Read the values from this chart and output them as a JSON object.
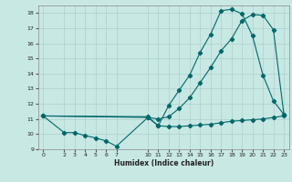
{
  "xlabel": "Humidex (Indice chaleur)",
  "bg_color": "#c8e8e4",
  "grid_color": "#aed0cc",
  "line_color": "#006868",
  "xlim": [
    -0.5,
    23.5
  ],
  "ylim": [
    9,
    18.5
  ],
  "xticks": [
    0,
    2,
    3,
    4,
    5,
    6,
    7,
    10,
    11,
    12,
    13,
    14,
    15,
    16,
    17,
    18,
    19,
    20,
    21,
    22,
    23
  ],
  "yticks": [
    9,
    10,
    11,
    12,
    13,
    14,
    15,
    16,
    17,
    18
  ],
  "line1_x": [
    0,
    2,
    3,
    4,
    5,
    6,
    7,
    10,
    11,
    12,
    13,
    14,
    15,
    16,
    17,
    18,
    19,
    20,
    21,
    22,
    23
  ],
  "line1_y": [
    11.2,
    10.1,
    10.1,
    9.9,
    9.75,
    9.55,
    9.2,
    11.1,
    10.55,
    10.5,
    10.5,
    10.55,
    10.6,
    10.65,
    10.75,
    10.85,
    10.9,
    10.95,
    11.0,
    11.1,
    11.2
  ],
  "line2_x": [
    0,
    10,
    11,
    12,
    13,
    14,
    15,
    16,
    17,
    18,
    19,
    20,
    21,
    22,
    23
  ],
  "line2_y": [
    11.2,
    11.15,
    10.55,
    11.9,
    12.9,
    13.9,
    15.4,
    16.6,
    18.15,
    18.25,
    17.95,
    16.5,
    13.9,
    12.2,
    11.3
  ],
  "line3_x": [
    0,
    10,
    11,
    12,
    13,
    14,
    15,
    16,
    17,
    18,
    19,
    20,
    21,
    22,
    23
  ],
  "line3_y": [
    11.2,
    11.1,
    11.0,
    11.15,
    11.7,
    12.4,
    13.4,
    14.4,
    15.5,
    16.3,
    17.5,
    17.9,
    17.85,
    16.9,
    11.3
  ]
}
